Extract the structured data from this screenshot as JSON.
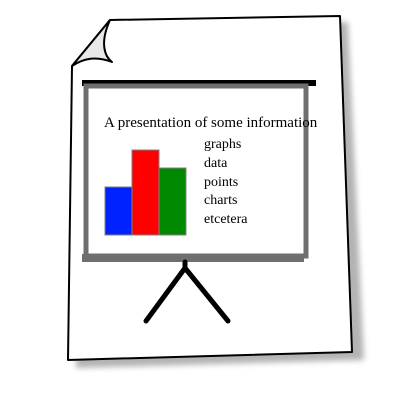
{
  "screen": {
    "heading": "A presentation of some information",
    "bullets": [
      "graphs",
      "data",
      "points",
      "charts",
      "etcetera"
    ]
  },
  "chart_data": {
    "type": "bar",
    "categories": [
      "",
      "",
      ""
    ],
    "values": [
      48,
      85,
      67
    ],
    "ylim": [
      0,
      100
    ],
    "grid": false,
    "legend": "none",
    "colors": [
      "#0022ff",
      "#ff0000",
      "#008800"
    ]
  },
  "colors": {
    "page_fill": "#ffffff",
    "outline": "#000000",
    "screen_border": "#6f6f6f",
    "screen_bar": "#000000",
    "shadow": "#9a9a9a"
  },
  "icons": {
    "document": "document-icon",
    "folded_corner": "folded-corner-icon",
    "projector_screen": "projector-screen-icon",
    "tripod": "tripod-icon"
  }
}
